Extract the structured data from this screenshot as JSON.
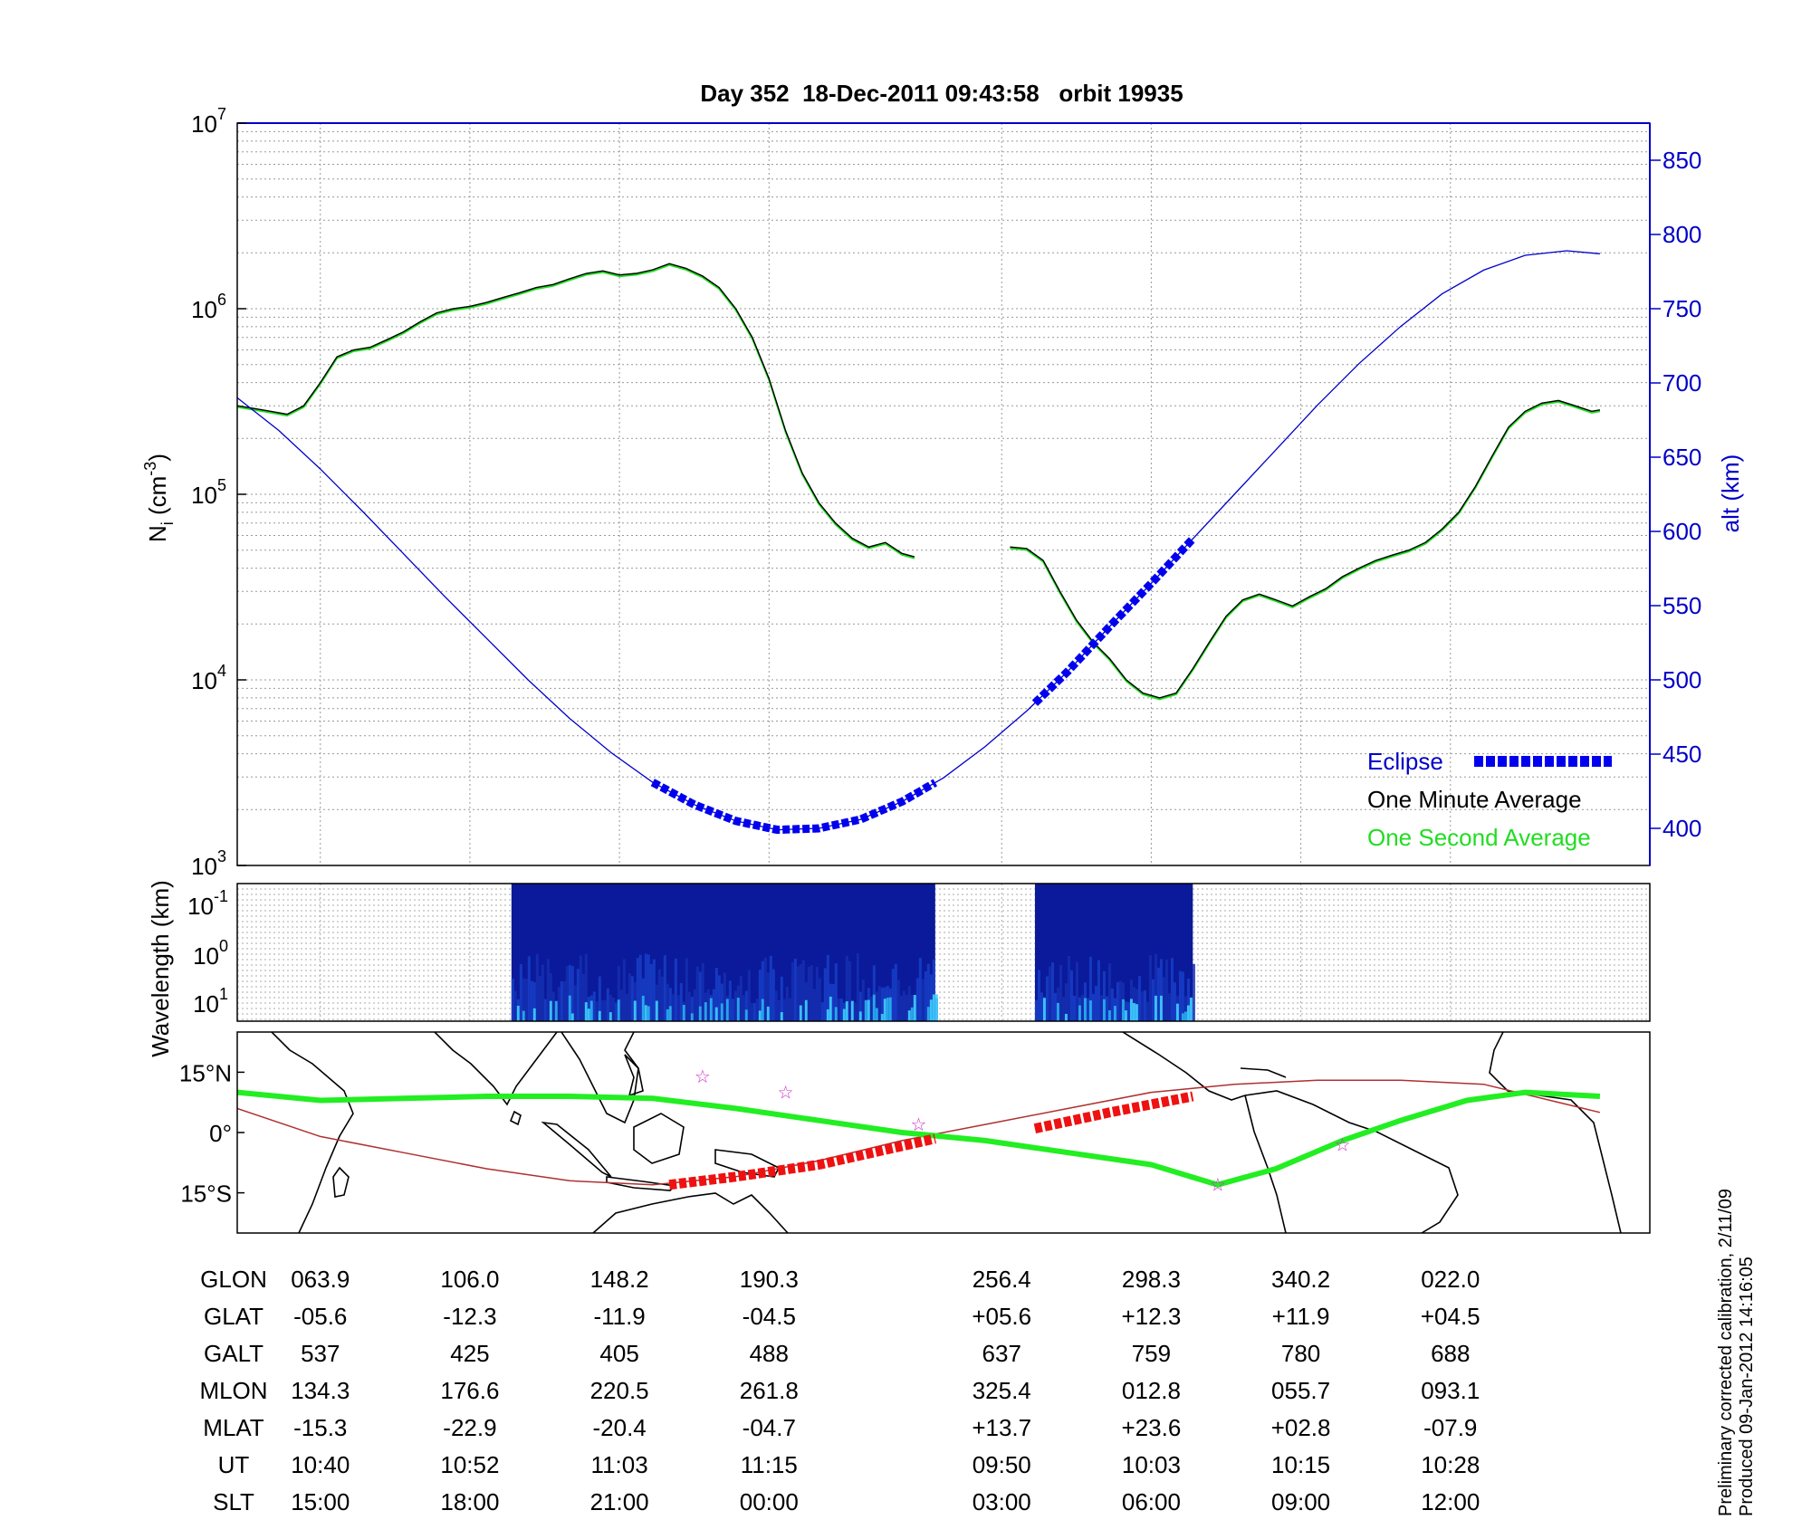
{
  "title": "Day 352  18-Dec-2011 09:43:58   orbit 19935",
  "side_note": {
    "line1": "Preliminary corrected calibration, 2/11/09",
    "line2": "Produced 09-Jan-2012 14:16:05"
  },
  "colors": {
    "axis": "#000000",
    "altitude": "#0000c8",
    "eclipse": "#0000ee",
    "one_minute_average": "#000000",
    "one_second_average": "#22dd22",
    "track": "#22ee22",
    "track_eclipse": "#ee1111",
    "magnetic_equator": "#b03030",
    "stars": "#cc33cc"
  },
  "chart_data": [
    {
      "type": "line",
      "title": "Day 352  18-Dec-2011 09:43:58   orbit 19935",
      "ylabel": "N_i (cm^-3)",
      "ylabel_parts": {
        "base": "N",
        "sub": "i",
        "unit": " (cm",
        "sup": "-3",
        "close": ")"
      },
      "y2label": "alt (km)",
      "yscale": "log",
      "ylim": [
        1000,
        10000000
      ],
      "y_ticks": [
        {
          "base": "10",
          "exp": "3"
        },
        {
          "base": "10",
          "exp": "4"
        },
        {
          "base": "10",
          "exp": "5"
        },
        {
          "base": "10",
          "exp": "6"
        },
        {
          "base": "10",
          "exp": "7"
        }
      ],
      "y2lim": [
        375,
        875
      ],
      "y2_ticks": [
        "400",
        "450",
        "500",
        "550",
        "600",
        "650",
        "700",
        "750",
        "800",
        "850"
      ],
      "grid": true,
      "legend": {
        "position": "bottom-right",
        "eclipse": "Eclipse",
        "one_minute": "One Minute Average",
        "one_second": "One Second Average"
      },
      "x_ticks_ut": [
        "10:40",
        "10:52",
        "11:03",
        "11:15",
        "09:50",
        "10:03",
        "10:15",
        "10:28"
      ],
      "series": [
        {
          "name": "One Minute Average",
          "segments": [
            [
              [
                0,
                300000
              ],
              [
                0.2,
                290000
              ],
              [
                0.4,
                280000
              ],
              [
                0.6,
                270000
              ],
              [
                0.8,
                300000
              ],
              [
                1.0,
                400000
              ],
              [
                1.2,
                550000
              ],
              [
                1.4,
                600000
              ],
              [
                1.6,
                620000
              ],
              [
                1.8,
                680000
              ],
              [
                2.0,
                750000
              ],
              [
                2.2,
                850000
              ],
              [
                2.4,
                950000
              ],
              [
                2.6,
                1000000
              ],
              [
                2.8,
                1030000
              ],
              [
                3.0,
                1080000
              ],
              [
                3.2,
                1150000
              ],
              [
                3.4,
                1220000
              ],
              [
                3.6,
                1300000
              ],
              [
                3.8,
                1350000
              ],
              [
                4.0,
                1450000
              ],
              [
                4.2,
                1550000
              ],
              [
                4.4,
                1600000
              ],
              [
                4.6,
                1520000
              ],
              [
                4.8,
                1550000
              ],
              [
                5.0,
                1620000
              ],
              [
                5.2,
                1750000
              ],
              [
                5.4,
                1650000
              ],
              [
                5.6,
                1500000
              ],
              [
                5.8,
                1300000
              ],
              [
                6.0,
                1000000
              ],
              [
                6.2,
                700000
              ],
              [
                6.4,
                420000
              ],
              [
                6.6,
                220000
              ],
              [
                6.8,
                130000
              ],
              [
                7.0,
                90000
              ],
              [
                7.2,
                70000
              ],
              [
                7.4,
                58000
              ],
              [
                7.6,
                52000
              ],
              [
                7.8,
                55000
              ],
              [
                8.0,
                48000
              ],
              [
                8.15,
                46000
              ]
            ],
            [
              [
                9.3,
                52000
              ],
              [
                9.5,
                51000
              ],
              [
                9.7,
                44000
              ],
              [
                9.9,
                30000
              ],
              [
                10.1,
                21000
              ],
              [
                10.3,
                16000
              ],
              [
                10.5,
                13000
              ],
              [
                10.7,
                10000
              ],
              [
                10.9,
                8500
              ],
              [
                11.1,
                8000
              ],
              [
                11.3,
                8500
              ],
              [
                11.5,
                11500
              ],
              [
                11.7,
                16000
              ],
              [
                11.9,
                22000
              ],
              [
                12.1,
                27000
              ],
              [
                12.3,
                29000
              ],
              [
                12.5,
                27000
              ],
              [
                12.7,
                25000
              ],
              [
                12.9,
                28000
              ],
              [
                13.1,
                31000
              ],
              [
                13.3,
                36000
              ],
              [
                13.5,
                40000
              ],
              [
                13.7,
                44000
              ],
              [
                13.9,
                47000
              ],
              [
                14.1,
                50000
              ],
              [
                14.3,
                55000
              ],
              [
                14.5,
                65000
              ],
              [
                14.7,
                80000
              ],
              [
                14.9,
                110000
              ],
              [
                15.1,
                160000
              ],
              [
                15.3,
                230000
              ],
              [
                15.5,
                280000
              ],
              [
                15.7,
                310000
              ],
              [
                15.9,
                320000
              ],
              [
                16.1,
                300000
              ],
              [
                16.3,
                280000
              ],
              [
                16.4,
                285000
              ]
            ]
          ]
        },
        {
          "name": "alt (km)",
          "axis": "right",
          "x": [
            0,
            0.5,
            1,
            1.5,
            2,
            2.5,
            3,
            3.5,
            4,
            4.5,
            5,
            5.5,
            6,
            6.5,
            7,
            7.5,
            8,
            8.5,
            9,
            9.5,
            10,
            10.5,
            11,
            11.5,
            12,
            12.5,
            13,
            13.5,
            14,
            14.5,
            15,
            15.5,
            16,
            16.4
          ],
          "values": [
            690,
            668,
            642,
            614,
            585,
            556,
            528,
            500,
            474,
            451,
            431,
            416,
            405,
            399,
            400,
            406,
            418,
            434,
            455,
            479,
            506,
            536,
            565,
            595,
            625,
            655,
            685,
            713,
            738,
            760,
            776,
            786,
            789,
            787
          ]
        }
      ],
      "eclipse_intervals": [
        [
          5.0,
          8.4
        ],
        [
          9.6,
          11.5
        ]
      ]
    },
    {
      "type": "heatmap",
      "ylabel": "Wavelength (km)",
      "y_ticks": [
        {
          "base": "10",
          "exp": "-1"
        },
        {
          "base": "10",
          "exp": "0"
        },
        {
          "base": "10",
          "exp": "1"
        }
      ],
      "data_blocks": [
        [
          3.3,
          8.4
        ],
        [
          9.6,
          11.5
        ]
      ]
    },
    {
      "type": "map",
      "y_ticks": [
        "15°N",
        "0°",
        "15°S"
      ],
      "ylim": [
        -25,
        25
      ],
      "track": [
        [
          0,
          10
        ],
        [
          1.0,
          8
        ],
        [
          2.0,
          8.5
        ],
        [
          3.0,
          9
        ],
        [
          4.0,
          9
        ],
        [
          5.0,
          8.5
        ],
        [
          6.0,
          6
        ],
        [
          7.0,
          3
        ],
        [
          8.0,
          0
        ],
        [
          9.0,
          -2
        ],
        [
          10.0,
          -5
        ],
        [
          11.0,
          -8
        ],
        [
          11.8,
          -13
        ],
        [
          12.5,
          -9
        ],
        [
          13.3,
          -2
        ],
        [
          14.0,
          3
        ],
        [
          14.8,
          8
        ],
        [
          15.5,
          10
        ],
        [
          16.4,
          9
        ]
      ],
      "eclipse_track": [
        [
          [
            5.2,
            -13
          ],
          [
            6.0,
            -11
          ],
          [
            7.0,
            -8
          ],
          [
            8.4,
            -1.5
          ]
        ],
        [
          [
            9.6,
            1
          ],
          [
            10.5,
            5
          ],
          [
            11.5,
            9
          ]
        ]
      ],
      "magnetic_equator": [
        [
          0,
          6
        ],
        [
          1.0,
          -1
        ],
        [
          2.0,
          -5
        ],
        [
          3.0,
          -9
        ],
        [
          4.0,
          -12
        ],
        [
          5.0,
          -13
        ],
        [
          6.0,
          -11
        ],
        [
          7.0,
          -7
        ],
        [
          8.0,
          -2
        ],
        [
          9.0,
          2
        ],
        [
          10.0,
          6
        ],
        [
          11.0,
          10
        ],
        [
          12.0,
          12
        ],
        [
          13.0,
          13
        ],
        [
          14.0,
          13
        ],
        [
          15.0,
          12
        ],
        [
          16.0,
          7
        ],
        [
          16.4,
          5
        ]
      ],
      "stars": [
        [
          5.6,
          14
        ],
        [
          6.6,
          10
        ],
        [
          8.2,
          2
        ],
        [
          11.8,
          -13
        ],
        [
          13.3,
          -3
        ]
      ]
    }
  ],
  "table": {
    "rows": [
      {
        "label": "GLON",
        "values": [
          "063.9",
          "106.0",
          "148.2",
          "190.3",
          "256.4",
          "298.3",
          "340.2",
          "022.0"
        ]
      },
      {
        "label": "GLAT",
        "values": [
          "-05.6",
          "-12.3",
          "-11.9",
          "-04.5",
          "+05.6",
          "+12.3",
          "+11.9",
          "+04.5"
        ]
      },
      {
        "label": "GALT",
        "values": [
          "537",
          "425",
          "405",
          "488",
          "637",
          "759",
          "780",
          "688"
        ]
      },
      {
        "label": "MLON",
        "values": [
          "134.3",
          "176.6",
          "220.5",
          "261.8",
          "325.4",
          "012.8",
          "055.7",
          "093.1"
        ]
      },
      {
        "label": "MLAT",
        "values": [
          "-15.3",
          "-22.9",
          "-20.4",
          "-04.7",
          "+13.7",
          "+23.6",
          "+02.8",
          "-07.9"
        ]
      },
      {
        "label": "UT",
        "values": [
          "10:40",
          "10:52",
          "11:03",
          "11:15",
          "09:50",
          "10:03",
          "10:15",
          "10:28"
        ]
      },
      {
        "label": "SLT",
        "values": [
          "15:00",
          "18:00",
          "21:00",
          "00:00",
          "03:00",
          "06:00",
          "09:00",
          "12:00"
        ]
      }
    ]
  }
}
